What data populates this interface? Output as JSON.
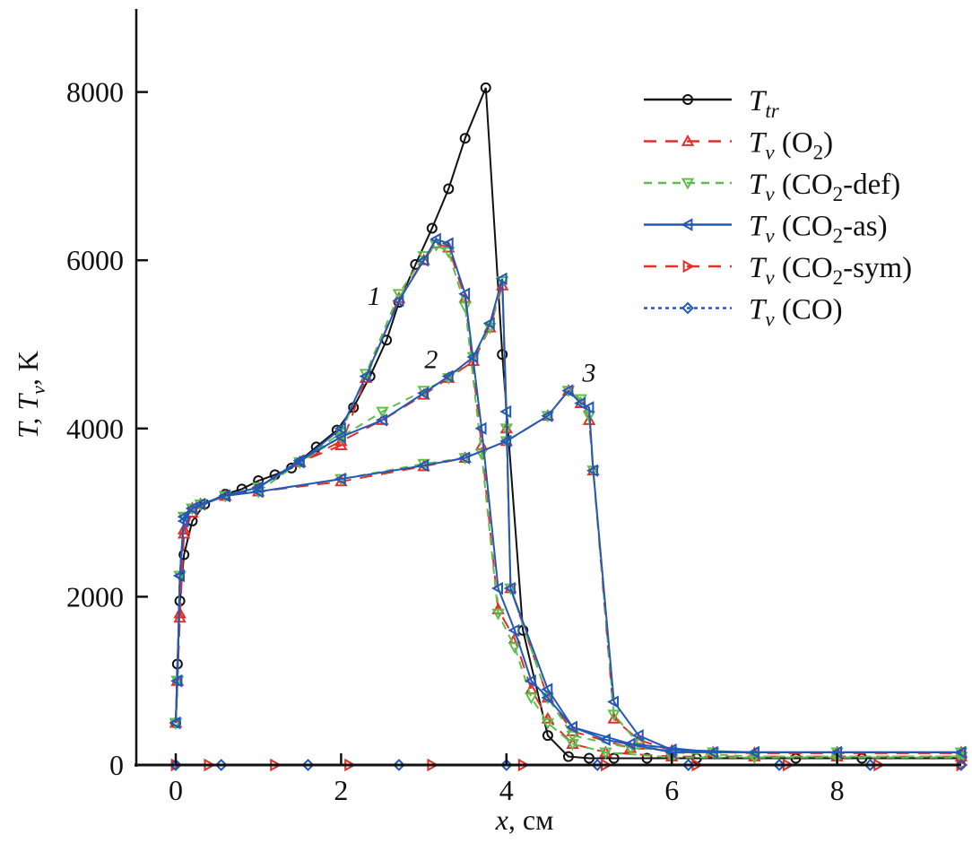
{
  "chart_data": {
    "type": "line",
    "title": "",
    "xlabel": {
      "main": "x",
      "rest": ", см"
    },
    "ylabel": {
      "t1": "T, T",
      "sub": "v",
      "t2": ",  K"
    },
    "xlim": [
      -0.48,
      9.5
    ],
    "ylim": [
      0,
      9000
    ],
    "xticks": [
      0,
      2,
      4,
      6,
      8
    ],
    "yticks": [
      0,
      2000,
      4000,
      6000,
      8000
    ],
    "grid": false,
    "legend_position": "top-right",
    "annotations": [
      {
        "text": "1",
        "x": 2.4,
        "y": 5470
      },
      {
        "text": "2",
        "x": 3.09,
        "y": 4720
      },
      {
        "text": "3",
        "x": 5.0,
        "y": 4560
      }
    ],
    "series": [
      {
        "name": "T_tr",
        "legend": {
          "sym": "T",
          "sub": "tr",
          "text": "",
          "sub2": "",
          "tail": ""
        },
        "color": "#111111",
        "dash": "",
        "marker": "circle",
        "curves": [
          {
            "x": [
              0,
              0.02,
              0.05,
              0.1,
              0.2,
              0.35,
              0.6,
              0.8,
              1.0,
              1.2,
              1.4,
              1.7,
              1.95,
              2.15,
              2.35,
              2.55,
              2.7,
              2.9,
              3.1,
              3.3,
              3.5,
              3.75,
              3.95,
              4.2,
              4.5,
              4.75,
              5.0,
              5.3,
              5.7,
              6.3,
              7.5,
              8.3,
              9.5
            ],
            "y": [
              500,
              1200,
              1950,
              2500,
              2900,
              3100,
              3220,
              3280,
              3380,
              3450,
              3530,
              3780,
              3980,
              4250,
              4620,
              5050,
              5500,
              5950,
              6380,
              6850,
              7450,
              8050,
              4880,
              1600,
              350,
              100,
              80,
              80,
              80,
              80,
              80,
              80,
              80
            ]
          }
        ]
      },
      {
        "name": "T_v (O2)",
        "legend": {
          "sym": "T",
          "sub": "v",
          "text": " (O",
          "sub2": "2",
          "tail": ")"
        },
        "color": "#e0302a",
        "dash": "14,10",
        "marker": "triangle-up",
        "curves": [
          {
            "x": [
              0,
              0.02,
              0.05,
              0.1,
              0.2,
              0.3,
              0.6,
              1.0,
              1.5,
              2.0,
              2.3,
              2.7,
              3.0,
              3.15,
              3.3,
              3.5,
              3.7,
              3.9,
              4.1,
              4.3,
              4.5,
              4.8,
              5.2,
              6.0,
              7.0,
              8.0,
              9.5
            ],
            "y": [
              500,
              1000,
              1750,
              2750,
              3000,
              3100,
              3200,
              3300,
              3600,
              3800,
              4600,
              5550,
              6000,
              6200,
              6150,
              5550,
              3800,
              1850,
              1500,
              900,
              550,
              250,
              150,
              100,
              100,
              100,
              100
            ]
          },
          {
            "x": [
              0,
              0.02,
              0.05,
              0.1,
              0.2,
              0.6,
              1.0,
              1.5,
              2.0,
              2.5,
              3.0,
              3.3,
              3.6,
              3.8,
              3.95,
              4.0,
              4.05,
              4.5,
              4.8,
              5.5,
              6.5,
              8.0,
              9.5
            ],
            "y": [
              500,
              1000,
              1800,
              2800,
              3050,
              3200,
              3300,
              3600,
              3850,
              4100,
              4400,
              4600,
              4800,
              5200,
              5700,
              4000,
              2100,
              800,
              400,
              200,
              150,
              150,
              150
            ]
          },
          {
            "x": [
              0,
              0.02,
              0.05,
              0.1,
              0.2,
              0.6,
              1.0,
              2.0,
              3.0,
              3.5,
              4.0,
              4.5,
              4.75,
              4.9,
              5.0,
              5.05,
              5.3,
              5.6,
              6.0,
              7.0,
              8.0,
              9.5
            ],
            "y": [
              500,
              1000,
              1800,
              2800,
              3050,
              3200,
              3250,
              3370,
              3550,
              3650,
              3850,
              4150,
              4450,
              4300,
              4100,
              3500,
              550,
              300,
              170,
              140,
              140,
              140
            ]
          }
        ]
      },
      {
        "name": "T_v (CO2-def)",
        "legend": {
          "sym": "T",
          "sub": "v",
          "text": " (CO",
          "sub2": "2",
          "tail": "-def)"
        },
        "color": "#5cbf4a",
        "dash": "9,7",
        "marker": "triangle-down",
        "curves": [
          {
            "x": [
              0,
              0.02,
              0.05,
              0.1,
              0.2,
              0.3,
              0.6,
              1.0,
              1.5,
              2.0,
              2.3,
              2.7,
              3.0,
              3.15,
              3.3,
              3.5,
              3.7,
              3.9,
              4.1,
              4.3,
              4.5,
              4.8,
              5.2,
              6.0,
              7.0,
              8.0,
              9.5
            ],
            "y": [
              500,
              1000,
              2250,
              2950,
              3050,
              3100,
              3200,
              3250,
              3600,
              3950,
              4650,
              5600,
              6050,
              6180,
              6100,
              5450,
              3700,
              1800,
              1400,
              800,
              500,
              250,
              150,
              90,
              90,
              90,
              90
            ]
          },
          {
            "x": [
              0,
              0.02,
              0.05,
              0.1,
              0.2,
              0.6,
              1.0,
              1.5,
              2.0,
              2.5,
              3.0,
              3.3,
              3.6,
              3.8,
              3.95,
              4.0,
              4.05,
              4.5,
              4.8,
              5.5,
              6.5,
              8.0,
              9.5
            ],
            "y": [
              500,
              1000,
              2250,
              2950,
              3050,
              3200,
              3300,
              3600,
              3900,
              4200,
              4450,
              4600,
              4850,
              5200,
              5750,
              4000,
              2100,
              800,
              350,
              200,
              150,
              150,
              150
            ]
          },
          {
            "x": [
              0,
              0.02,
              0.05,
              0.1,
              0.2,
              0.6,
              1.0,
              2.0,
              3.0,
              3.5,
              4.0,
              4.5,
              4.75,
              4.9,
              5.0,
              5.05,
              5.3,
              5.6,
              6.0,
              7.0,
              8.0,
              9.5
            ],
            "y": [
              500,
              1000,
              2250,
              2950,
              3050,
              3200,
              3250,
              3400,
              3580,
              3650,
              3850,
              4150,
              4450,
              4350,
              4150,
              3500,
              600,
              250,
              150,
              100,
              100,
              100
            ]
          }
        ]
      },
      {
        "name": "T_v (CO2-as)",
        "legend": {
          "sym": "T",
          "sub": "v",
          "text": " (CO",
          "sub2": "2",
          "tail": "-as)"
        },
        "color": "#2458b8",
        "dash": "",
        "marker": "triangle-left",
        "curves": [
          {
            "x": [
              0,
              0.02,
              0.05,
              0.1,
              0.2,
              0.3,
              0.6,
              1.0,
              1.5,
              2.0,
              2.3,
              2.7,
              3.0,
              3.15,
              3.3,
              3.5,
              3.7,
              3.9,
              4.1,
              4.3,
              4.5,
              4.8,
              5.2,
              6.0,
              7.0,
              8.0,
              9.5
            ],
            "y": [
              500,
              1000,
              2250,
              2900,
              3050,
              3100,
              3200,
              3300,
              3600,
              4000,
              4620,
              5520,
              6000,
              6250,
              6200,
              5600,
              4000,
              2100,
              1600,
              1000,
              800,
              450,
              300,
              150,
              150,
              150,
              150
            ]
          },
          {
            "x": [
              0,
              0.02,
              0.05,
              0.1,
              0.2,
              0.6,
              1.0,
              1.5,
              2.0,
              2.5,
              3.0,
              3.3,
              3.6,
              3.8,
              3.95,
              4.0,
              4.05,
              4.5,
              4.8,
              5.5,
              6.5,
              8.0,
              9.5
            ],
            "y": [
              500,
              1000,
              2250,
              2950,
              3050,
              3200,
              3300,
              3620,
              3900,
              4100,
              4420,
              4620,
              4850,
              5250,
              5780,
              4200,
              2100,
              900,
              450,
              250,
              150,
              150,
              150
            ]
          },
          {
            "x": [
              0,
              0.02,
              0.05,
              0.1,
              0.2,
              0.6,
              1.0,
              2.0,
              3.0,
              3.5,
              4.0,
              4.5,
              4.75,
              4.9,
              5.0,
              5.05,
              5.3,
              5.6,
              6.0,
              7.0,
              8.0,
              9.5
            ],
            "y": [
              500,
              1000,
              2250,
              2950,
              3050,
              3200,
              3250,
              3400,
              3560,
              3650,
              3850,
              4150,
              4450,
              4300,
              4250,
              3500,
              750,
              350,
              180,
              150,
              150,
              150
            ]
          }
        ]
      },
      {
        "name": "T_v (CO2-sym)",
        "legend": {
          "sym": "T",
          "sub": "v",
          "text": " (CO",
          "sub2": "2",
          "tail": "-sym)"
        },
        "color": "#e0302a",
        "dash": "14,10",
        "marker": "triangle-right",
        "curves": [
          {
            "x": [
              0,
              0.4,
              1.2,
              2.1,
              3.1,
              4.2,
              5.2,
              6.3,
              7.4,
              8.5,
              9.5
            ],
            "y": [
              0,
              0,
              0,
              0,
              0,
              0,
              0,
              0,
              0,
              0,
              0
            ]
          }
        ]
      },
      {
        "name": "T_v (CO)",
        "legend": {
          "sym": "T",
          "sub": "v",
          "text": " (CO",
          "sub2": "",
          "tail": ")"
        },
        "color": "#2458b8",
        "dash": "4,4",
        "marker": "diamond",
        "curves": [
          {
            "x": [
              0,
              0.55,
              1.6,
              2.7,
              4.0,
              5.1,
              6.2,
              7.3,
              8.4,
              9.5
            ],
            "y": [
              0,
              0,
              0,
              0,
              0,
              0,
              0,
              0,
              0,
              0
            ]
          }
        ]
      }
    ]
  }
}
